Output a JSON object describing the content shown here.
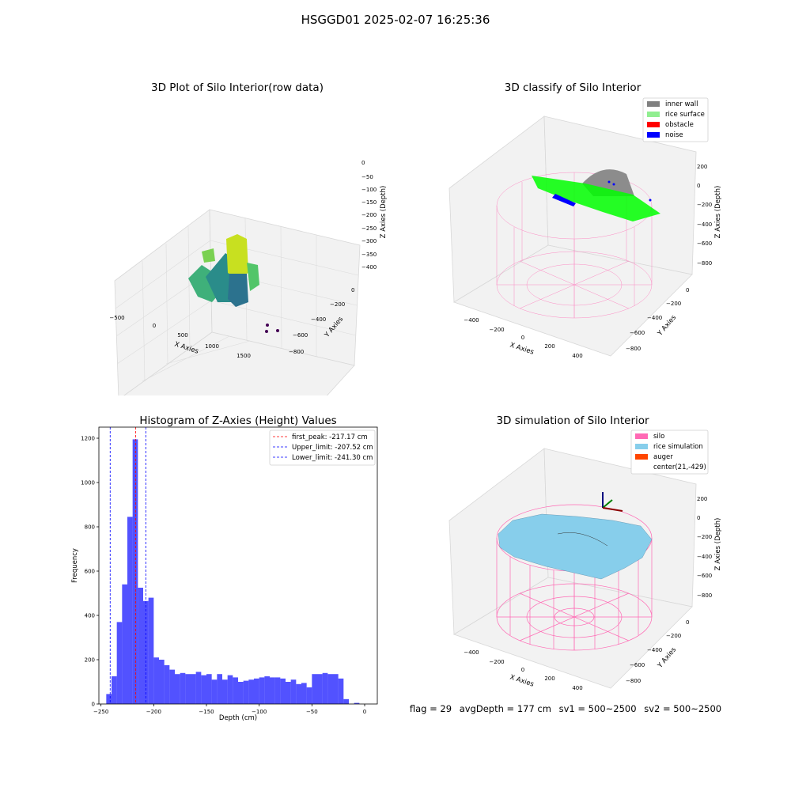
{
  "suptitle": "HSGGD01 2025-02-07 16:25:36",
  "panels": {
    "raw": {
      "title": "3D Plot of Silo Interior(row data)",
      "xlabel": "X Axies",
      "ylabel": "Y Axies",
      "zlabel": "Z Axies (Depth)",
      "xticks": [
        "−500",
        "0",
        "500",
        "1000",
        "1500"
      ],
      "yticks": [
        "0",
        "−200",
        "−400",
        "−600",
        "−800"
      ],
      "zticks": [
        "0",
        "−50",
        "−100",
        "−150",
        "−200",
        "−250",
        "−300",
        "−350",
        "−400"
      ]
    },
    "classify": {
      "title": "3D classify of Silo Interior",
      "xlabel": "X Axies",
      "ylabel": "Y Axies",
      "zlabel": "Z Axies (Depth)",
      "xticks": [
        "−400",
        "−200",
        "0",
        "200",
        "400"
      ],
      "yticks": [
        "0",
        "−200",
        "−400",
        "−600",
        "−800"
      ],
      "zticks": [
        "200",
        "0",
        "−200",
        "−400",
        "−600",
        "−800"
      ],
      "legend": [
        {
          "label": "inner wall",
          "color": "#808080"
        },
        {
          "label": "rice surface",
          "color": "#90ee90"
        },
        {
          "label": "obstacle",
          "color": "#ff0000"
        },
        {
          "label": "noise",
          "color": "#0000ff"
        }
      ]
    },
    "simulation": {
      "title": "3D simulation of Silo Interior",
      "xlabel": "X Axies",
      "ylabel": "Y Axies",
      "zlabel": "Z Axies (Depth)",
      "xticks": [
        "−400",
        "−200",
        "0",
        "200",
        "400"
      ],
      "yticks": [
        "0",
        "−200",
        "−400",
        "−600",
        "−800"
      ],
      "zticks": [
        "200",
        "0",
        "−200",
        "−400",
        "−600",
        "−800"
      ],
      "legend": [
        {
          "label": "silo",
          "color": "#ff69b4"
        },
        {
          "label": "rice simulation",
          "color": "#87ceeb"
        },
        {
          "label": "auger",
          "color": "#ff4500"
        },
        {
          "label": "center(21,-429)",
          "color": ""
        }
      ]
    }
  },
  "status": {
    "flag": "flag = 29",
    "avg_depth": "avgDepth = 177 cm",
    "sv1": "sv1 = 500~2500",
    "sv2": "sv2 = 500~2500"
  },
  "chart_data": {
    "type": "bar",
    "title": "Histogram of Z-Axies (Height) Values",
    "xlabel": "Depth (cm)",
    "ylabel": "Frequency",
    "xlim": [
      -252,
      12
    ],
    "ylim": [
      0,
      1250
    ],
    "xticks": [
      -250,
      -200,
      -150,
      -100,
      -50,
      0
    ],
    "yticks": [
      0,
      200,
      400,
      600,
      800,
      1000,
      1200
    ],
    "bar_color": "#0000ff",
    "bin_width": 5,
    "bins": [
      {
        "x0": -245,
        "count": 45
      },
      {
        "x0": -240,
        "count": 125
      },
      {
        "x0": -235,
        "count": 370
      },
      {
        "x0": -230,
        "count": 540
      },
      {
        "x0": -225,
        "count": 845
      },
      {
        "x0": -220,
        "count": 1195
      },
      {
        "x0": -215,
        "count": 525
      },
      {
        "x0": -210,
        "count": 465
      },
      {
        "x0": -205,
        "count": 480
      },
      {
        "x0": -200,
        "count": 210
      },
      {
        "x0": -195,
        "count": 200
      },
      {
        "x0": -190,
        "count": 175
      },
      {
        "x0": -185,
        "count": 155
      },
      {
        "x0": -180,
        "count": 135
      },
      {
        "x0": -175,
        "count": 140
      },
      {
        "x0": -170,
        "count": 135
      },
      {
        "x0": -165,
        "count": 135
      },
      {
        "x0": -160,
        "count": 145
      },
      {
        "x0": -155,
        "count": 130
      },
      {
        "x0": -150,
        "count": 135
      },
      {
        "x0": -145,
        "count": 110
      },
      {
        "x0": -140,
        "count": 135
      },
      {
        "x0": -135,
        "count": 110
      },
      {
        "x0": -130,
        "count": 130
      },
      {
        "x0": -125,
        "count": 120
      },
      {
        "x0": -120,
        "count": 100
      },
      {
        "x0": -115,
        "count": 105
      },
      {
        "x0": -110,
        "count": 110
      },
      {
        "x0": -105,
        "count": 115
      },
      {
        "x0": -100,
        "count": 120
      },
      {
        "x0": -95,
        "count": 125
      },
      {
        "x0": -90,
        "count": 120
      },
      {
        "x0": -85,
        "count": 120
      },
      {
        "x0": -80,
        "count": 115
      },
      {
        "x0": -75,
        "count": 100
      },
      {
        "x0": -70,
        "count": 110
      },
      {
        "x0": -65,
        "count": 90
      },
      {
        "x0": -60,
        "count": 95
      },
      {
        "x0": -55,
        "count": 75
      },
      {
        "x0": -50,
        "count": 135
      },
      {
        "x0": -45,
        "count": 135
      },
      {
        "x0": -40,
        "count": 140
      },
      {
        "x0": -35,
        "count": 135
      },
      {
        "x0": -30,
        "count": 135
      },
      {
        "x0": -25,
        "count": 115
      },
      {
        "x0": -20,
        "count": 22
      },
      {
        "x0": -15,
        "count": 0
      },
      {
        "x0": -10,
        "count": 5
      }
    ],
    "vlines": [
      {
        "x": -217.17,
        "color": "#ff0000",
        "label": "first_peak: -217.17 cm"
      },
      {
        "x": -207.52,
        "color": "#0000ff",
        "label": "Upper_limit: -207.52 cm"
      },
      {
        "x": -241.3,
        "color": "#0000ff",
        "label": "Lower_limit: -241.30 cm"
      }
    ],
    "legend_position": "top-right"
  }
}
